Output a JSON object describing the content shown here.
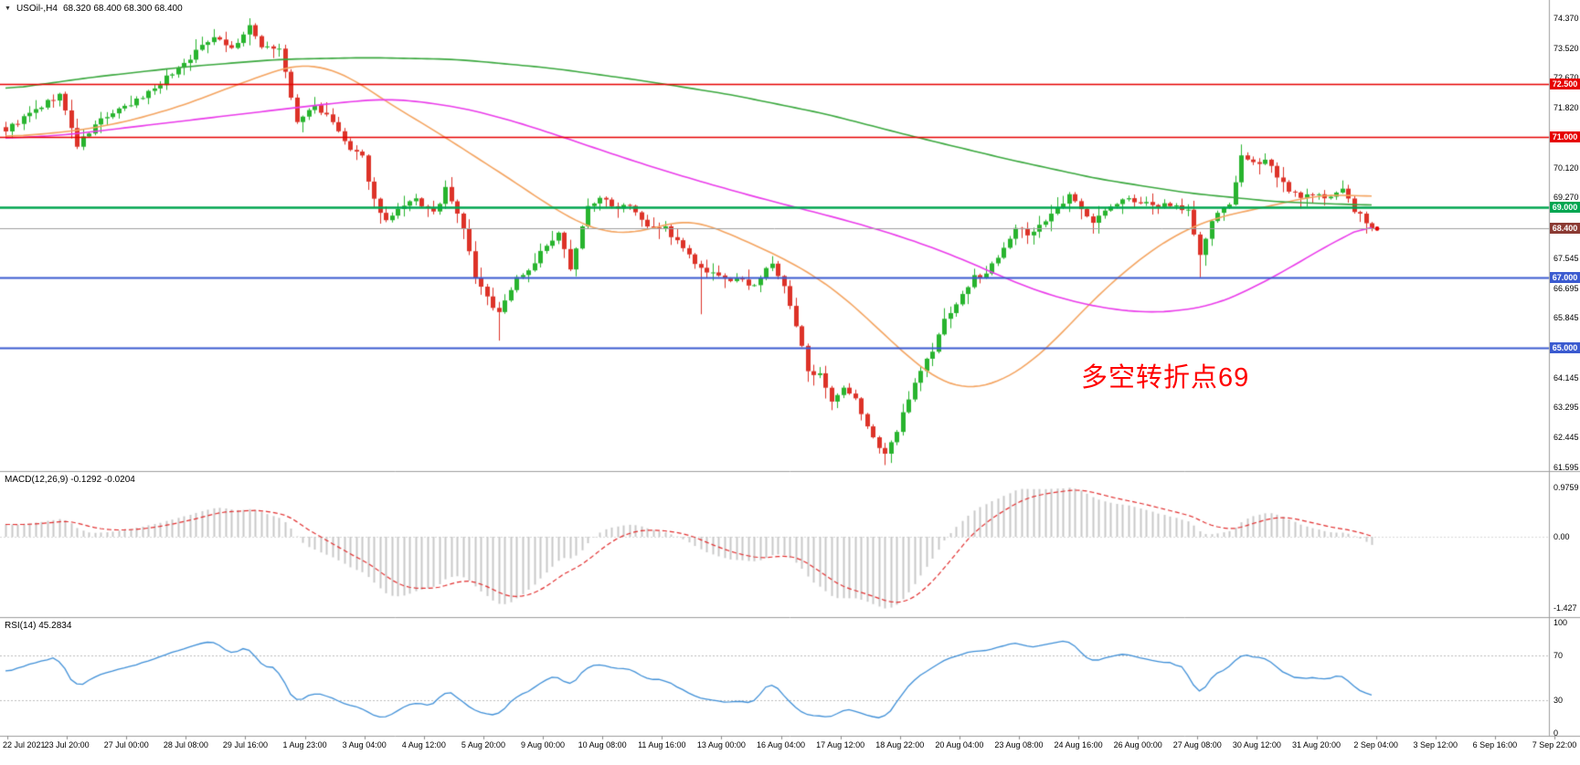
{
  "header": {
    "dropdown_icon": "▼",
    "symbol": "USOil-,H4",
    "ohlc": "68.320 68.400 68.300 68.400"
  },
  "annotation": {
    "text": "多空转折点69",
    "color": "#ff0000"
  },
  "panels": {
    "macd": {
      "label": "MACD(12,26,9) -0.1292 -0.0204",
      "axis_labels": [
        {
          "text": "0.9759",
          "value": 0.9759
        },
        {
          "text": "0.00",
          "value": 0
        },
        {
          "text": "-1.427",
          "value": -1.427
        }
      ]
    },
    "rsi": {
      "label": "RSI(14) 45.2834",
      "axis_labels": [
        {
          "text": "100",
          "value": 100
        },
        {
          "text": "70",
          "value": 70
        },
        {
          "text": "30",
          "value": 30
        },
        {
          "text": "0",
          "value": 0
        }
      ]
    }
  },
  "price_axis": {
    "labels": [
      "74.370",
      "73.520",
      "72.670",
      "71.820",
      "70.120",
      "69.270",
      "67.545",
      "66.695",
      "65.845",
      "64.145",
      "63.295",
      "62.445",
      "61.595"
    ]
  },
  "time_axis": {
    "labels": [
      "22 Jul 2021",
      "23 Jul 20:00",
      "27 Jul 00:00",
      "28 Jul 08:00",
      "29 Jul 16:00",
      "1 Aug 23:00",
      "3 Aug 04:00",
      "4 Aug 12:00",
      "5 Aug 20:00",
      "9 Aug 00:00",
      "10 Aug 08:00",
      "11 Aug 16:00",
      "13 Aug 00:00",
      "16 Aug 04:00",
      "17 Aug 12:00",
      "18 Aug 22:00",
      "20 Aug 04:00",
      "23 Aug 08:00",
      "24 Aug 16:00",
      "26 Aug 00:00",
      "27 Aug 08:00",
      "30 Aug 12:00",
      "31 Aug 20:00",
      "2 Sep 04:00",
      "3 Sep 12:00",
      "6 Sep 16:00",
      "7 Sep 22:00"
    ]
  },
  "levels": [
    {
      "label": "72.500",
      "price": 72.5,
      "color": "#e60000",
      "thickness": 1.4
    },
    {
      "label": "71.000",
      "price": 71.0,
      "color": "#e60000",
      "thickness": 1.4
    },
    {
      "label": "69.000",
      "price": 69.0,
      "color": "#00a651",
      "thickness": 2.4
    },
    {
      "label": "67.000",
      "price": 67.0,
      "color": "#3a5ad0",
      "thickness": 2.2
    },
    {
      "label": "65.000",
      "price": 65.0,
      "color": "#3a5ad0",
      "thickness": 2.2
    }
  ],
  "current_price": {
    "label": "68.400",
    "price": 68.4,
    "badge_color": "#8b3a33",
    "line_color": "#9f9f9f"
  },
  "colors": {
    "candle_up": "#28b42e",
    "candle_down": "#dd3228",
    "ma_green": "#3aa83e",
    "ma_magenta": "#ea3bea",
    "ma_orange": "#f4a460",
    "macd_hist": "#c8c8c8",
    "macd_signal": "#e23030",
    "rsi_line": "#4090d8",
    "separator": "#9e9e9e",
    "axis_text": "#000000"
  },
  "chart_data": {
    "type": "candlestick",
    "symbol": "USOil-",
    "timeframe": "H4",
    "bars": 231,
    "last_close": 68.4,
    "visible_price_range": [
      61.595,
      74.37
    ],
    "noise_seed": 9,
    "noise_amp": 0.16,
    "price_path_anchors": [
      [
        0,
        71.2
      ],
      [
        9,
        72.2
      ],
      [
        12,
        70.75
      ],
      [
        16,
        71.5
      ],
      [
        21,
        71.9
      ],
      [
        25,
        72.4
      ],
      [
        30,
        73.1
      ],
      [
        35,
        73.9
      ],
      [
        38,
        73.5
      ],
      [
        41,
        74.1
      ],
      [
        43,
        73.6
      ],
      [
        46,
        73.5
      ],
      [
        49,
        71.4
      ],
      [
        52,
        71.9
      ],
      [
        55,
        71.4
      ],
      [
        58,
        70.6
      ],
      [
        60,
        70.4
      ],
      [
        62,
        69.2
      ],
      [
        64,
        68.6
      ],
      [
        67,
        69.0
      ],
      [
        69,
        69.2
      ],
      [
        72,
        68.8
      ],
      [
        74,
        69.5
      ],
      [
        77,
        68.4
      ],
      [
        79,
        67.0
      ],
      [
        81,
        66.4
      ],
      [
        83,
        66.0
      ],
      [
        86,
        67.0
      ],
      [
        88,
        67.2
      ],
      [
        90,
        67.7
      ],
      [
        93,
        68.2
      ],
      [
        95,
        67.3
      ],
      [
        98,
        69.0
      ],
      [
        100,
        69.3
      ],
      [
        102,
        69.0
      ],
      [
        105,
        69.1
      ],
      [
        108,
        68.5
      ],
      [
        111,
        68.4
      ],
      [
        114,
        67.8
      ],
      [
        117,
        67.2
      ],
      [
        120,
        67.0
      ],
      [
        123,
        66.9
      ],
      [
        126,
        66.8
      ],
      [
        129,
        67.4
      ],
      [
        131,
        66.7
      ],
      [
        133,
        65.6
      ],
      [
        135,
        64.4
      ],
      [
        137,
        64.2
      ],
      [
        139,
        63.4
      ],
      [
        141,
        63.8
      ],
      [
        143,
        63.5
      ],
      [
        146,
        62.4
      ],
      [
        148,
        62.0
      ],
      [
        150,
        62.6
      ],
      [
        152,
        63.6
      ],
      [
        154,
        64.4
      ],
      [
        156,
        64.9
      ],
      [
        158,
        65.8
      ],
      [
        161,
        66.5
      ],
      [
        163,
        67.0
      ],
      [
        165,
        67.1
      ],
      [
        168,
        67.9
      ],
      [
        170,
        68.4
      ],
      [
        172,
        68.2
      ],
      [
        174,
        68.5
      ],
      [
        177,
        68.9
      ],
      [
        179,
        69.3
      ],
      [
        181,
        69.0
      ],
      [
        183,
        68.6
      ],
      [
        186,
        69.0
      ],
      [
        188,
        69.2
      ],
      [
        190,
        69.2
      ],
      [
        193,
        69.0
      ],
      [
        196,
        69.1
      ],
      [
        199,
        68.9
      ],
      [
        201,
        67.6
      ],
      [
        203,
        68.6
      ],
      [
        206,
        69.1
      ],
      [
        208,
        70.4
      ],
      [
        210,
        70.2
      ],
      [
        212,
        70.4
      ],
      [
        214,
        69.9
      ],
      [
        216,
        69.4
      ],
      [
        219,
        69.3
      ],
      [
        222,
        69.3
      ],
      [
        225,
        69.5
      ],
      [
        227,
        68.9
      ],
      [
        230,
        68.4
      ]
    ],
    "wick_overrides": [
      {
        "i": 41,
        "high": 74.37
      },
      {
        "i": 83,
        "low": 65.2
      },
      {
        "i": 117,
        "low": 65.95
      },
      {
        "i": 148,
        "low": 61.66
      },
      {
        "i": 149,
        "low": 61.72
      },
      {
        "i": 201,
        "low": 67.0
      },
      {
        "i": 208,
        "high": 70.78
      }
    ],
    "moving_averages": [
      {
        "name": "MA-fast-orange",
        "color_key": "ma_orange",
        "anchors": [
          [
            0,
            71.0
          ],
          [
            8,
            71.1
          ],
          [
            15,
            71.25
          ],
          [
            22,
            71.5
          ],
          [
            30,
            71.9
          ],
          [
            37,
            72.35
          ],
          [
            45,
            72.85
          ],
          [
            48,
            73.0
          ],
          [
            51,
            73.05
          ],
          [
            54,
            72.95
          ],
          [
            58,
            72.7
          ],
          [
            61,
            72.35
          ],
          [
            66,
            71.8
          ],
          [
            72,
            71.2
          ],
          [
            78,
            70.55
          ],
          [
            84,
            69.9
          ],
          [
            88,
            69.45
          ],
          [
            92,
            69.0
          ],
          [
            95,
            68.7
          ],
          [
            98,
            68.45
          ],
          [
            101,
            68.3
          ],
          [
            105,
            68.25
          ],
          [
            108,
            68.35
          ],
          [
            111,
            68.5
          ],
          [
            114,
            68.6
          ],
          [
            117,
            68.55
          ],
          [
            121,
            68.3
          ],
          [
            125,
            68.0
          ],
          [
            129,
            67.7
          ],
          [
            133,
            67.35
          ],
          [
            137,
            66.95
          ],
          [
            141,
            66.45
          ],
          [
            145,
            65.85
          ],
          [
            149,
            65.2
          ],
          [
            153,
            64.6
          ],
          [
            156,
            64.2
          ],
          [
            159,
            63.95
          ],
          [
            162,
            63.85
          ],
          [
            165,
            63.9
          ],
          [
            168,
            64.1
          ],
          [
            172,
            64.5
          ],
          [
            176,
            65.1
          ],
          [
            180,
            65.8
          ],
          [
            184,
            66.5
          ],
          [
            188,
            67.1
          ],
          [
            192,
            67.65
          ],
          [
            196,
            68.1
          ],
          [
            200,
            68.45
          ],
          [
            204,
            68.7
          ],
          [
            208,
            68.85
          ],
          [
            212,
            69.0
          ],
          [
            216,
            69.15
          ],
          [
            220,
            69.3
          ],
          [
            224,
            69.35
          ],
          [
            230,
            69.3
          ]
        ]
      },
      {
        "name": "MA-mid-magenta",
        "color_key": "ma_magenta",
        "anchors": [
          [
            0,
            70.95
          ],
          [
            10,
            71.05
          ],
          [
            20,
            71.25
          ],
          [
            30,
            71.45
          ],
          [
            40,
            71.65
          ],
          [
            50,
            71.85
          ],
          [
            58,
            72.0
          ],
          [
            64,
            72.07
          ],
          [
            70,
            72.0
          ],
          [
            78,
            71.78
          ],
          [
            86,
            71.42
          ],
          [
            94,
            70.98
          ],
          [
            102,
            70.52
          ],
          [
            110,
            70.08
          ],
          [
            118,
            69.68
          ],
          [
            126,
            69.3
          ],
          [
            134,
            68.95
          ],
          [
            142,
            68.6
          ],
          [
            150,
            68.2
          ],
          [
            156,
            67.85
          ],
          [
            162,
            67.45
          ],
          [
            168,
            67.0
          ],
          [
            174,
            66.6
          ],
          [
            180,
            66.3
          ],
          [
            186,
            66.1
          ],
          [
            192,
            66.0
          ],
          [
            198,
            66.05
          ],
          [
            204,
            66.25
          ],
          [
            210,
            66.7
          ],
          [
            216,
            67.25
          ],
          [
            222,
            67.85
          ],
          [
            226,
            68.2
          ],
          [
            230,
            68.55
          ]
        ]
      },
      {
        "name": "MA-slow-green",
        "color_key": "ma_green",
        "anchors": [
          [
            0,
            72.35
          ],
          [
            15,
            72.7
          ],
          [
            31,
            73.0
          ],
          [
            46,
            73.2
          ],
          [
            61,
            73.25
          ],
          [
            76,
            73.2
          ],
          [
            92,
            72.95
          ],
          [
            107,
            72.6
          ],
          [
            122,
            72.2
          ],
          [
            138,
            71.65
          ],
          [
            153,
            71.0
          ],
          [
            169,
            70.35
          ],
          [
            184,
            69.8
          ],
          [
            199,
            69.4
          ],
          [
            214,
            69.15
          ],
          [
            230,
            69.05
          ]
        ]
      }
    ],
    "indicators": {
      "macd": {
        "fast": 12,
        "slow": 26,
        "signal": 9,
        "current": -0.1292,
        "current_signal": -0.0204,
        "axis_max": 0.9759,
        "axis_min": -1.427
      },
      "rsi": {
        "period": 14,
        "current": 45.2834,
        "levels": [
          70,
          30
        ]
      }
    }
  }
}
